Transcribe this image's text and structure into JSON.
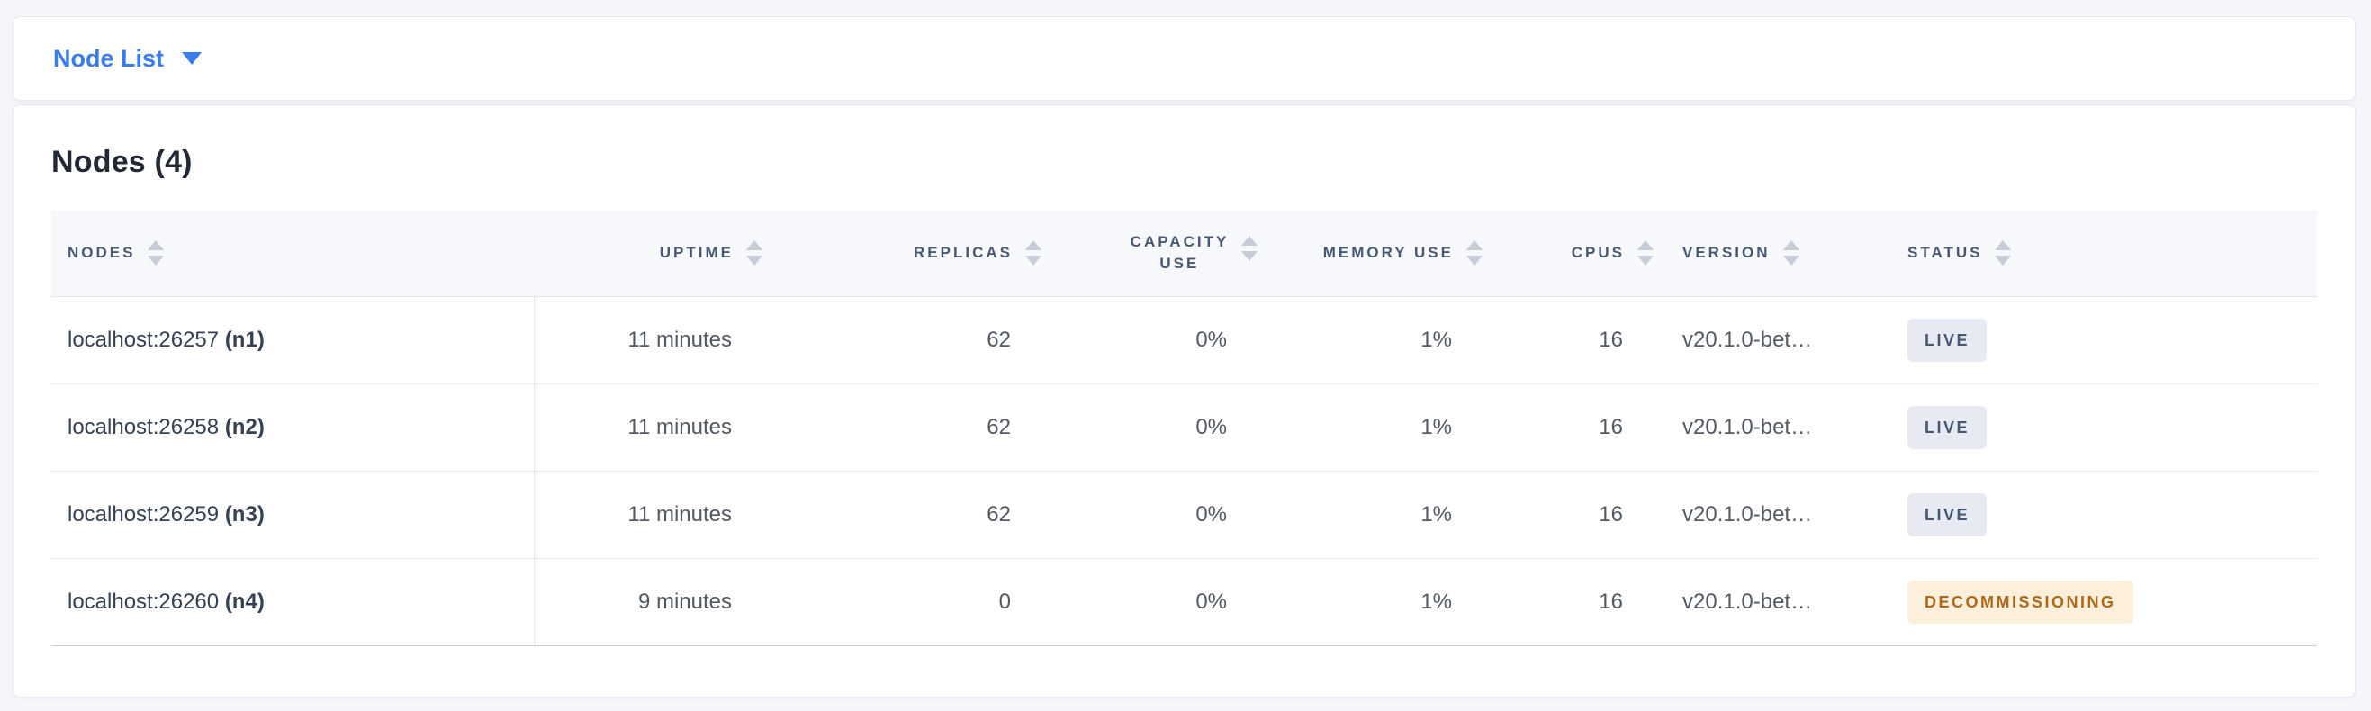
{
  "view_selector": {
    "label": "Node List"
  },
  "summary": {
    "title": "Nodes (4)"
  },
  "table": {
    "columns": [
      {
        "id": "nodes",
        "label": "Nodes"
      },
      {
        "id": "uptime",
        "label": "Uptime"
      },
      {
        "id": "replicas",
        "label": "Replicas"
      },
      {
        "id": "capacity_use",
        "label": "Capacity Use"
      },
      {
        "id": "memory_use",
        "label": "Memory Use"
      },
      {
        "id": "cpus",
        "label": "CPUs"
      },
      {
        "id": "version",
        "label": "Version"
      },
      {
        "id": "status",
        "label": "Status"
      }
    ],
    "rows": [
      {
        "address": "localhost:26257",
        "node_id": "(n1)",
        "uptime": "11 minutes",
        "replicas": "62",
        "capacity_use": "0%",
        "memory_use": "1%",
        "cpus": "16",
        "version": "v20.1.0-bet…",
        "status": {
          "label": "LIVE",
          "type": "live"
        }
      },
      {
        "address": "localhost:26258",
        "node_id": "(n2)",
        "uptime": "11 minutes",
        "replicas": "62",
        "capacity_use": "0%",
        "memory_use": "1%",
        "cpus": "16",
        "version": "v20.1.0-bet…",
        "status": {
          "label": "LIVE",
          "type": "live"
        }
      },
      {
        "address": "localhost:26259",
        "node_id": "(n3)",
        "uptime": "11 minutes",
        "replicas": "62",
        "capacity_use": "0%",
        "memory_use": "1%",
        "cpus": "16",
        "version": "v20.1.0-bet…",
        "status": {
          "label": "LIVE",
          "type": "live"
        }
      },
      {
        "address": "localhost:26260",
        "node_id": "(n4)",
        "uptime": "9 minutes",
        "replicas": "0",
        "capacity_use": "0%",
        "memory_use": "1%",
        "cpus": "16",
        "version": "v20.1.0-bet…",
        "status": {
          "label": "DECOMMISSIONING",
          "type": "decommissioning"
        }
      }
    ]
  },
  "colors": {
    "accent_blue": "#3b7cec",
    "status_live_bg": "#e7eaf3",
    "status_live_text": "#475872",
    "status_decommissioning_bg": "#fcf0dc",
    "status_decommissioning_text": "#b06818"
  }
}
